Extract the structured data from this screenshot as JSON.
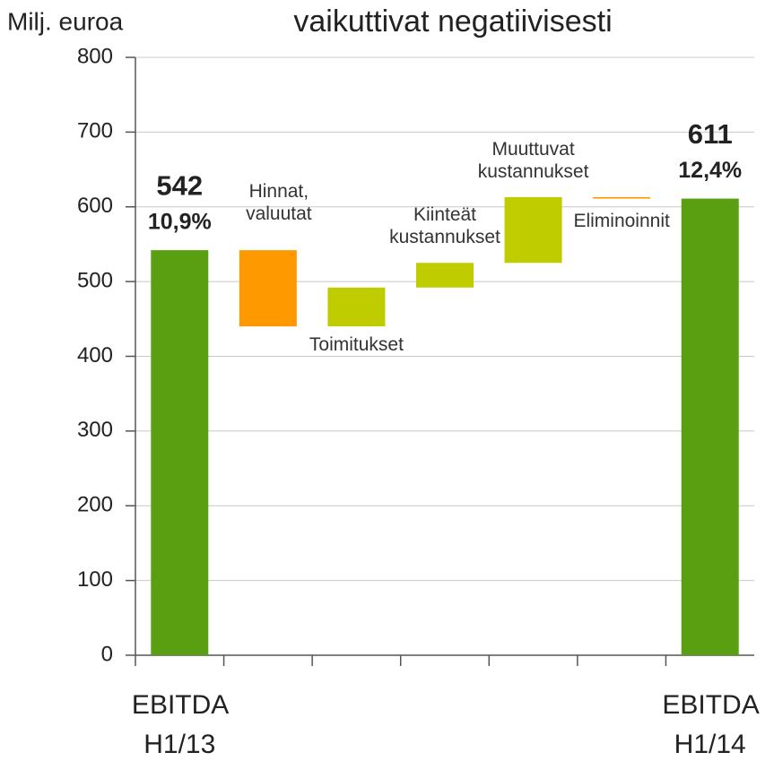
{
  "chart_data": {
    "type": "waterfall",
    "title": "vaikuttivat negatiivisesti",
    "y_axis_label": "Milj. euroa",
    "categories": [
      "EBITDA H1/13",
      "Hinnat, valuutat",
      "Toimitukset",
      "Kiinteät kustannukset",
      "Muuttuvat kustannukset",
      "Eliminoinnit",
      "EBITDA H1/14"
    ],
    "values": [
      542,
      -102,
      52,
      33,
      88,
      -2,
      611
    ],
    "is_total": [
      true,
      false,
      false,
      false,
      false,
      false,
      true
    ],
    "colors": [
      "#5a9e12",
      "#ff9900",
      "#bfcc00",
      "#bfcc00",
      "#bfcc00",
      "#ff9900",
      "#5a9e12"
    ],
    "annotations": [
      "10,9%",
      "12,4%"
    ],
    "ylim": [
      0,
      800
    ],
    "yticks": [
      0,
      100,
      200,
      300,
      400,
      500,
      600,
      700,
      800
    ],
    "grid": true
  }
}
